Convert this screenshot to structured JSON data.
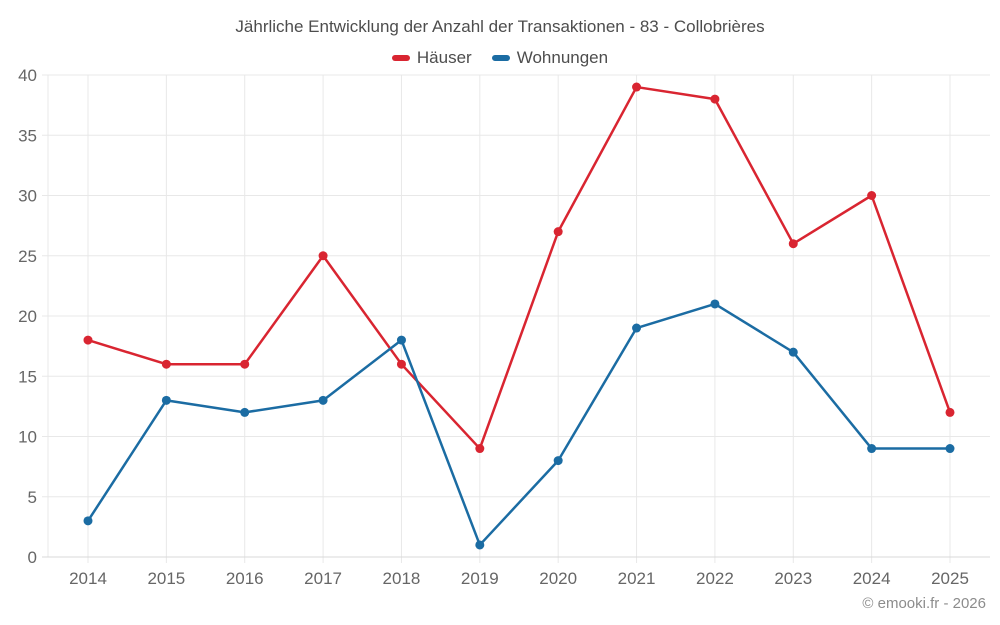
{
  "page": {
    "title": "Jährliche Entwicklung der Anzahl der Transaktionen - 83 - Collobrières",
    "copyright": "© emooki.fr - 2026"
  },
  "colors": {
    "hauser": "#d92531",
    "wohnungen": "#1b6ca3",
    "grid": "#e8e8e8",
    "axis_line": "#d9d9d9",
    "axis_text": "#666666",
    "title_text": "#4d4d4d",
    "background": "#ffffff"
  },
  "chart_data": {
    "type": "line",
    "title": "Jährliche Entwicklung der Anzahl der Transaktionen - 83 - Collobrières",
    "categories": [
      "2014",
      "2015",
      "2016",
      "2017",
      "2018",
      "2019",
      "2020",
      "2021",
      "2022",
      "2023",
      "2024",
      "2025"
    ],
    "series": [
      {
        "name": "Häuser",
        "color": "#d92531",
        "values": [
          18,
          16,
          16,
          25,
          16,
          9,
          27,
          39,
          38,
          26,
          30,
          12
        ]
      },
      {
        "name": "Wohnungen",
        "color": "#1b6ca3",
        "values": [
          3,
          13,
          12,
          13,
          18,
          1,
          8,
          19,
          21,
          17,
          9,
          9
        ]
      }
    ],
    "xlabel": "",
    "ylabel": "",
    "ylim": [
      0,
      40
    ],
    "ytick_step": 5,
    "grid": true,
    "legend_position": "top",
    "marker": "circle"
  }
}
